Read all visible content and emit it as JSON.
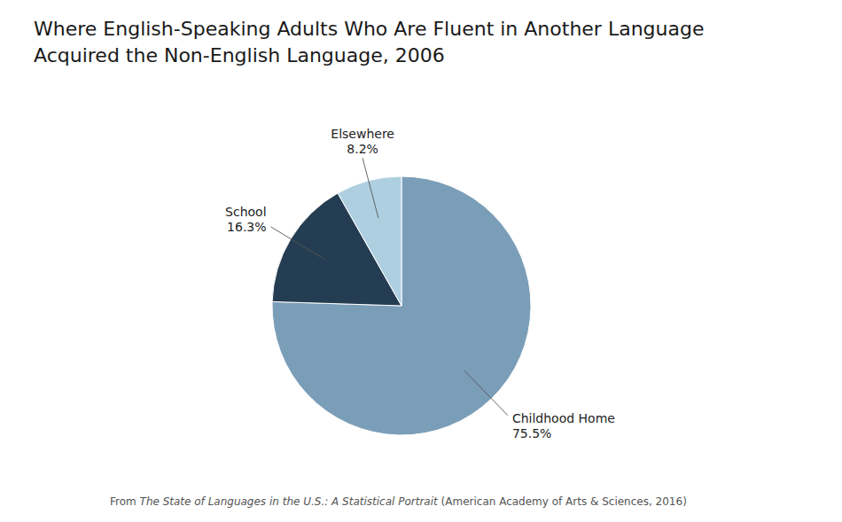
{
  "chart_data": {
    "type": "pie",
    "title": [
      "Where English-Speaking Adults Who Are Fluent in Another Language",
      "Acquired the Non-English Language, 2006"
    ],
    "categories": [
      "Childhood Home",
      "School",
      "Elsewhere"
    ],
    "values": [
      75.5,
      16.3,
      8.2
    ],
    "value_labels": [
      "75.5%",
      "16.3%",
      "8.2%"
    ],
    "colors": [
      "#7b9eb8",
      "#253d52",
      "#aecfe0"
    ],
    "data_labels": true,
    "annotations": [
      "From ",
      "The State of Languages in the U.S.: A Statistical Portrait",
      " (American Academy of Arts & Sciences, 2016)"
    ]
  }
}
